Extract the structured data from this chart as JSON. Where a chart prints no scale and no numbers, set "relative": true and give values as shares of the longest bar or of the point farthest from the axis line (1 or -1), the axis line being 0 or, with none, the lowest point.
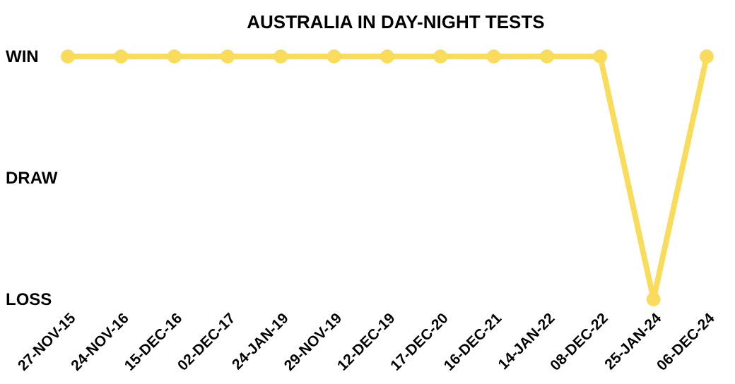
{
  "chart_data": {
    "type": "line",
    "title": "AUSTRALIA IN DAY-NIGHT TESTS",
    "relative": true,
    "categories": [
      "27-NOV-15",
      "24-NOV-16",
      "15-DEC-16",
      "02-DEC-17",
      "24-JAN-19",
      "29-NOV-19",
      "12-DEC-19",
      "17-DEC-20",
      "16-DEC-21",
      "14-JAN-22",
      "08-DEC-22",
      "25-JAN-24",
      "06-DEC-24"
    ],
    "y_categories": [
      "WIN",
      "DRAW",
      "LOSS"
    ],
    "series": [
      {
        "color": "#f9dc5c",
        "values": [
          1,
          1,
          1,
          1,
          1,
          1,
          1,
          1,
          1,
          1,
          1,
          0,
          1
        ]
      }
    ],
    "grid": false,
    "marker": "circle",
    "line_style": "solid"
  }
}
